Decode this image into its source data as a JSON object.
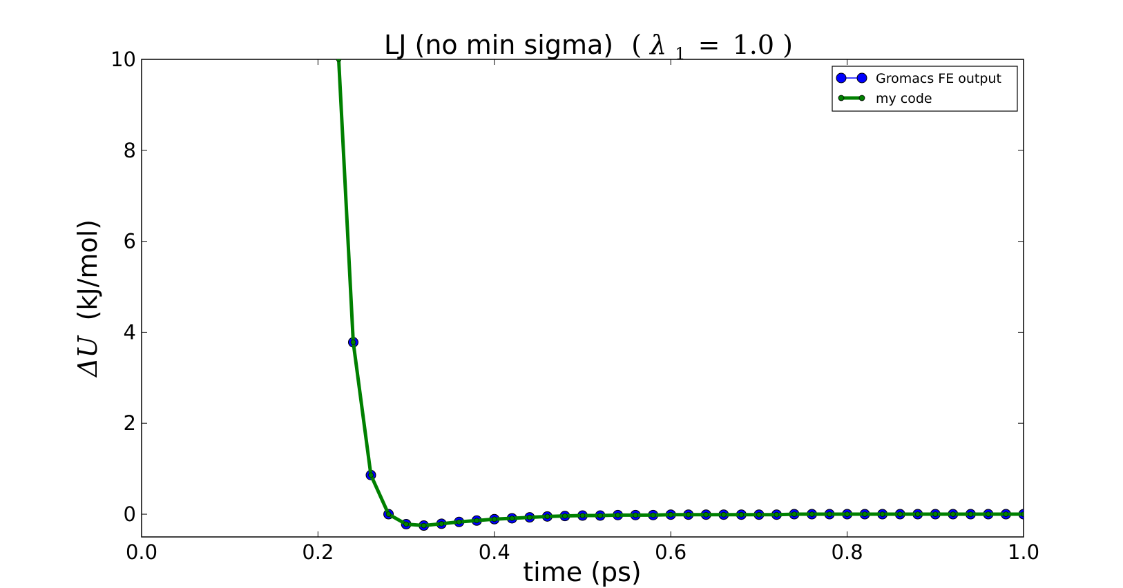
{
  "chart_data": {
    "type": "line",
    "title": "LJ (no min sigma)",
    "title_math": {
      "open": "(",
      "symbol": "λ",
      "subscript": "1",
      "equals": "=",
      "value": "1.0",
      "close": ")"
    },
    "xlabel": "time (ps)",
    "ylabel_math": "ΔU",
    "ylabel_text": "(kJ/mol)",
    "xlim": [
      0.0,
      1.0
    ],
    "ylim": [
      -0.5,
      10
    ],
    "xticks": [
      0.0,
      0.2,
      0.4,
      0.6,
      0.8,
      1.0
    ],
    "xtick_labels": [
      "0.0",
      "0.2",
      "0.4",
      "0.6",
      "0.8",
      "1.0"
    ],
    "yticks": [
      0,
      2,
      4,
      6,
      8,
      10
    ],
    "ytick_labels": [
      "0",
      "2",
      "4",
      "6",
      "8",
      "10"
    ],
    "grid": false,
    "legend_position": "top-right",
    "series": [
      {
        "name": "Gromacs FE output",
        "color": "#0000ff",
        "marker": "circle",
        "x": [
          0.24,
          0.26,
          0.28,
          0.3,
          0.32,
          0.34,
          0.36,
          0.38,
          0.4,
          0.42,
          0.44,
          0.46,
          0.48,
          0.5,
          0.52,
          0.54,
          0.56,
          0.58,
          0.6,
          0.62,
          0.64,
          0.66,
          0.68,
          0.7,
          0.72,
          0.74,
          0.76,
          0.78,
          0.8,
          0.82,
          0.84,
          0.86,
          0.88,
          0.9,
          0.92,
          0.94,
          0.96,
          0.98,
          1.0
        ],
        "y": [
          3.78,
          0.86,
          0.0,
          -0.22,
          -0.25,
          -0.21,
          -0.17,
          -0.14,
          -0.11,
          -0.09,
          -0.07,
          -0.05,
          -0.04,
          -0.03,
          -0.03,
          -0.02,
          -0.02,
          -0.02,
          -0.01,
          -0.01,
          -0.01,
          -0.01,
          -0.01,
          -0.01,
          -0.01,
          0.0,
          0.0,
          0.0,
          0.0,
          0.0,
          0.0,
          0.0,
          0.0,
          0.0,
          0.0,
          0.0,
          0.0,
          0.0,
          0.0
        ]
      },
      {
        "name": "my code",
        "color": "#008000",
        "marker": "circle",
        "x": [
          0.2235,
          0.24,
          0.26,
          0.28,
          0.3,
          0.32,
          0.34,
          0.36,
          0.38,
          0.4,
          0.42,
          0.44,
          0.46,
          0.48,
          0.5,
          0.52,
          0.54,
          0.56,
          0.58,
          0.6,
          0.62,
          0.64,
          0.66,
          0.68,
          0.7,
          0.72,
          0.74,
          0.76,
          0.78,
          0.8,
          0.82,
          0.84,
          0.86,
          0.88,
          0.9,
          0.92,
          0.94,
          0.96,
          0.98,
          1.0
        ],
        "y": [
          10.0,
          3.78,
          0.86,
          0.0,
          -0.22,
          -0.25,
          -0.21,
          -0.17,
          -0.14,
          -0.11,
          -0.09,
          -0.07,
          -0.05,
          -0.04,
          -0.03,
          -0.03,
          -0.02,
          -0.02,
          -0.02,
          -0.01,
          -0.01,
          -0.01,
          -0.01,
          -0.01,
          -0.01,
          -0.01,
          0.0,
          0.0,
          0.0,
          0.0,
          0.0,
          0.0,
          0.0,
          0.0,
          0.0,
          0.0,
          0.0,
          0.0,
          0.0,
          0.0
        ]
      }
    ]
  }
}
